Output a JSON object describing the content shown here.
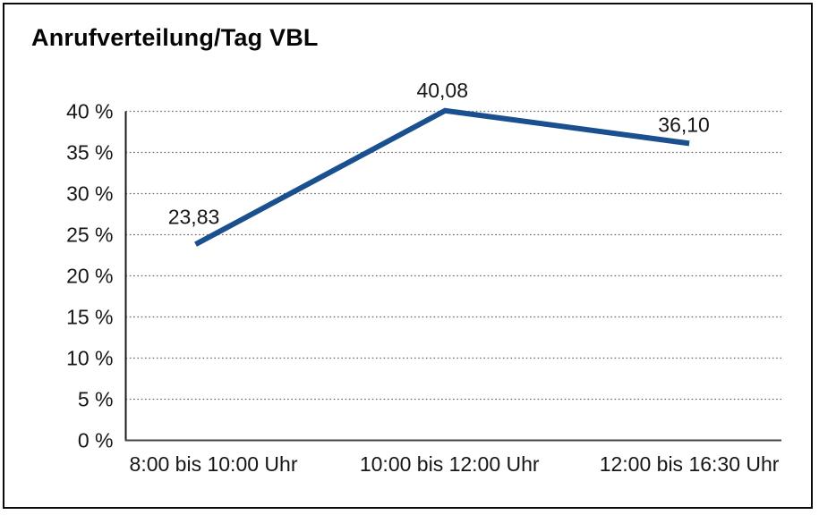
{
  "header": {
    "title": "Anrufverteilung/Tag VBL"
  },
  "colors": {
    "series_line": "#1a508f",
    "grid": "#666666",
    "y_axis": "#1a1a1a",
    "x_axis": "#444444",
    "text": "#161616",
    "frame_border": "#0a0a0a",
    "background": "#ffffff"
  },
  "chart_data": {
    "type": "line",
    "title": "Anrufverteilung/Tag VBL",
    "categories": [
      "8:00 bis 10:00 Uhr",
      "10:00 bis 12:00 Uhr",
      "12:00 bis 16:30 Uhr"
    ],
    "series": [
      {
        "name": "Anrufverteilung",
        "values": [
          23.83,
          40.08,
          36.1
        ],
        "point_labels": [
          "23,83",
          "40,08",
          "36,10"
        ]
      }
    ],
    "xlabel": "",
    "ylabel": "",
    "ylim": [
      0,
      40
    ],
    "y_tick_step": 5,
    "y_ticks": [
      0,
      5,
      10,
      15,
      20,
      25,
      30,
      35,
      40
    ],
    "y_tick_labels": [
      "0 %",
      "5 %",
      "10 %",
      "15 %",
      "20 %",
      "25 %",
      "30 %",
      "35 %",
      "40 %"
    ],
    "grid": "horizontal-dotted",
    "legend_position": "none",
    "decimal_separator": ","
  }
}
